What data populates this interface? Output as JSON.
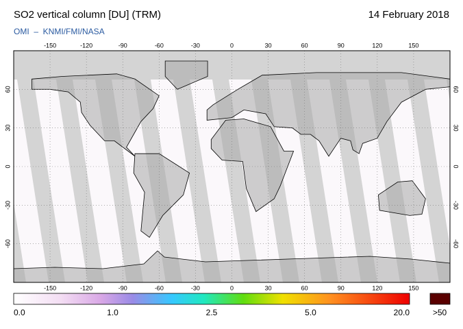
{
  "header": {
    "title": "SO2 vertical column [DU] (TRM)",
    "date": "14 February 2018",
    "credit": "OMI  –  KNMI/FMI/NASA"
  },
  "map": {
    "lonlim": [
      -180,
      180
    ],
    "latlim": [
      -90,
      90
    ],
    "lon_ticks": [
      -150,
      -120,
      -90,
      -60,
      -30,
      0,
      30,
      60,
      90,
      120,
      150
    ],
    "lat_ticks": [
      60,
      30,
      0,
      -30,
      -60
    ]
  },
  "colorbar": {
    "labels": [
      "0.0",
      "1.0",
      "2.5",
      "5.0",
      "20.0"
    ],
    "overflow_label": ">50"
  }
}
